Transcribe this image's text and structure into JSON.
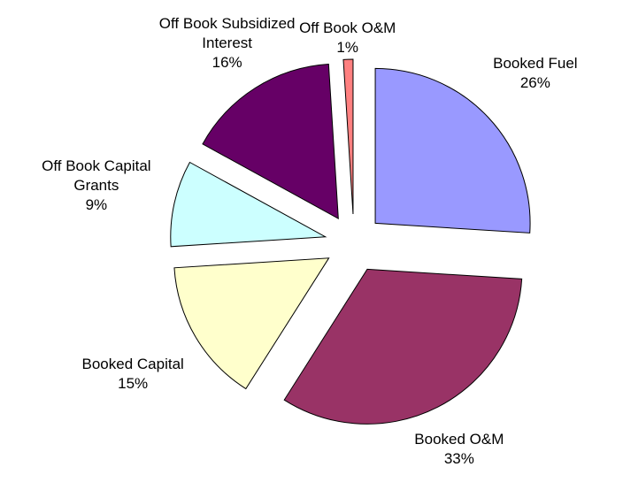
{
  "chart_data": {
    "type": "pie",
    "categories": [
      "Booked Fuel",
      "Booked O&M",
      "Booked Capital",
      "Off Book Capital Grants",
      "Off Book Subsidized Interest",
      "Off Book O&M"
    ],
    "values": [
      26,
      33,
      15,
      9,
      16,
      1
    ],
    "value_labels": [
      "26%",
      "33%",
      "15%",
      "9%",
      "16%",
      "1%"
    ],
    "colors": [
      "#9999ff",
      "#993366",
      "#ffffcc",
      "#ccffff",
      "#660066",
      "#ff8080"
    ],
    "exploded": true
  }
}
